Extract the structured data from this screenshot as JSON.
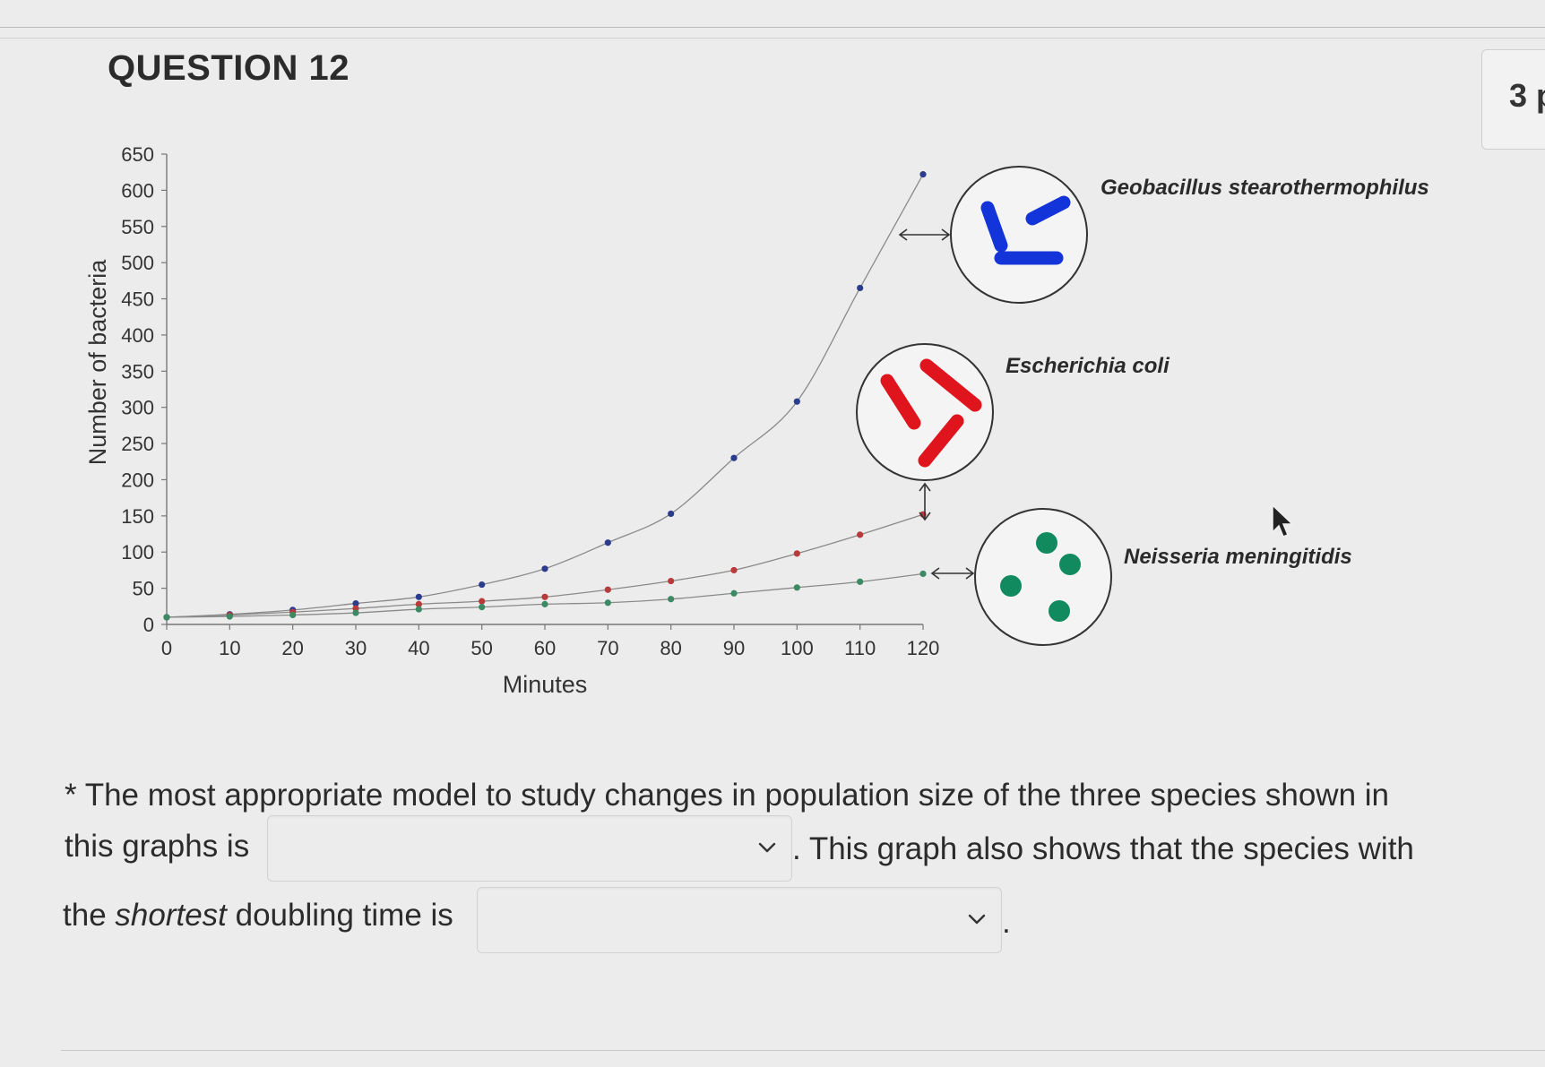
{
  "question": {
    "title": "QUESTION 12",
    "points_label": "3 p"
  },
  "chart_data": {
    "type": "scatter",
    "xlabel": "Minutes",
    "ylabel": "Number of bacteria",
    "xlim": [
      0,
      120
    ],
    "ylim": [
      0,
      650
    ],
    "xticks": [
      0,
      10,
      20,
      30,
      40,
      50,
      60,
      70,
      80,
      90,
      100,
      110,
      120
    ],
    "yticks": [
      0,
      50,
      100,
      150,
      200,
      250,
      300,
      350,
      400,
      450,
      500,
      550,
      600,
      650
    ],
    "grid": false,
    "x": [
      0,
      10,
      20,
      30,
      40,
      50,
      60,
      70,
      80,
      90,
      100,
      110,
      120
    ],
    "series": [
      {
        "name": "Geobacillus stearothermophilus",
        "color": "#2b3c8c",
        "values": [
          10,
          14,
          20,
          29,
          38,
          55,
          77,
          113,
          153,
          230,
          308,
          465,
          622
        ]
      },
      {
        "name": "Escherichia coli",
        "color": "#b83a3a",
        "values": [
          10,
          13,
          17,
          22,
          28,
          32,
          38,
          48,
          60,
          75,
          98,
          124,
          152
        ]
      },
      {
        "name": "Neisseria meningitidis",
        "color": "#3b8a64",
        "values": [
          10,
          11,
          13,
          16,
          21,
          24,
          28,
          30,
          35,
          43,
          51,
          59,
          70
        ]
      }
    ],
    "species_icons": [
      {
        "name": "Geobacillus stearothermophilus",
        "shape": "rods",
        "color": "#1334d8"
      },
      {
        "name": "Escherichia coli",
        "shape": "rods",
        "color": "#e0141d"
      },
      {
        "name": "Neisseria meningitidis",
        "shape": "cocci",
        "color": "#128a60"
      }
    ]
  },
  "prompt": {
    "line1": "* The most appropriate model to study changes in population size of the three species shown in",
    "line2_before": "this graphs is",
    "line2_after": ". This graph also shows that the species with",
    "line3_before_prefix": "the ",
    "line3_emphasis": "shortest",
    "line3_before_suffix": " doubling time is",
    "line3_after": "."
  },
  "dropdowns": {
    "model_select": {
      "selected": ""
    },
    "species_select": {
      "selected": ""
    }
  }
}
